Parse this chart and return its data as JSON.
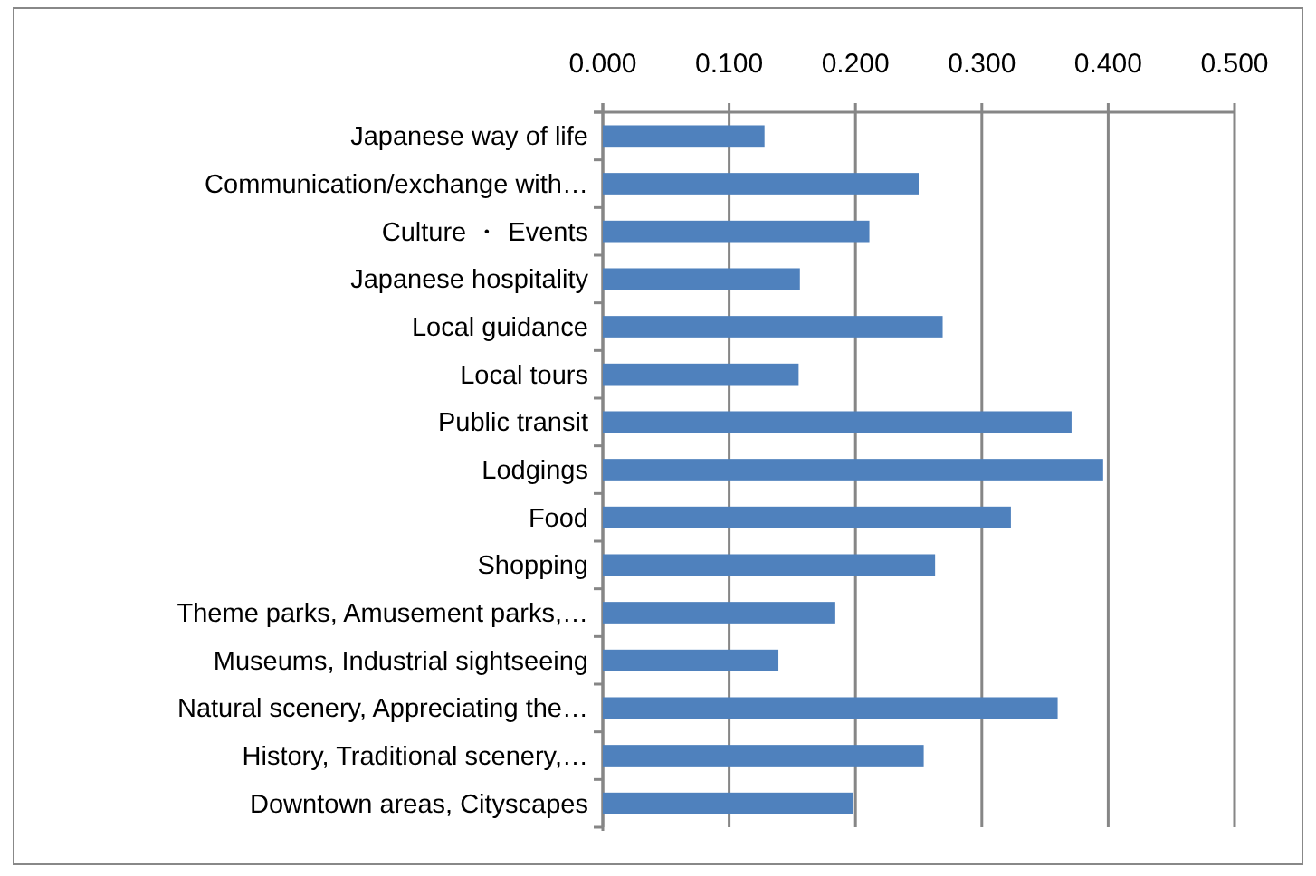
{
  "chart_data": {
    "type": "bar",
    "orientation": "horizontal",
    "grid": "x",
    "categories": [
      "Japanese way of life",
      "Communication/exchange with…",
      "Culture ・ Events",
      "Japanese hospitality",
      "Local guidance",
      "Local tours",
      "Public transit",
      "Lodgings",
      "Food",
      "Shopping",
      "Theme parks, Amusement parks,…",
      "Museums, Industrial sightseeing",
      "Natural scenery, Appreciating the…",
      "History, Traditional scenery,…",
      "Downtown areas, Cityscapes"
    ],
    "values": [
      0.128,
      0.25,
      0.211,
      0.156,
      0.269,
      0.155,
      0.371,
      0.396,
      0.323,
      0.263,
      0.184,
      0.139,
      0.36,
      0.254,
      0.198
    ],
    "color": "#4f81bd",
    "xlim": [
      0,
      0.5
    ],
    "xticks": [
      {
        "value": 0,
        "label": "0.000"
      },
      {
        "value": 0.1,
        "label": "0.100"
      },
      {
        "value": 0.2,
        "label": "0.200"
      },
      {
        "value": 0.3,
        "label": "0.300"
      },
      {
        "value": 0.4,
        "label": "0.400"
      },
      {
        "value": 0.5,
        "label": "0.500"
      }
    ]
  }
}
